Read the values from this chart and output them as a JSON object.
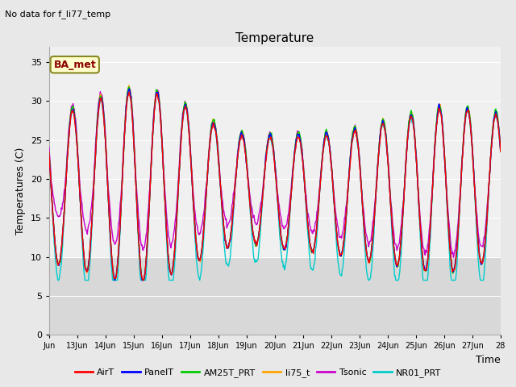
{
  "title": "Temperature",
  "xlabel": "Time",
  "ylabel": "Temperatures (C)",
  "no_data_text": "No data for f_li77_temp",
  "legend_label_text": "BA_met",
  "ylim": [
    0,
    37
  ],
  "yticks": [
    0,
    5,
    10,
    15,
    20,
    25,
    30,
    35
  ],
  "xtick_labels": [
    "Jun",
    "13Jun",
    "14Jun",
    "15Jun",
    "16Jun",
    "17Jun",
    "18Jun",
    "19Jun",
    "20Jun",
    "21Jun",
    "22Jun",
    "23Jun",
    "24Jun",
    "25Jun",
    "26Jun",
    "27Jun",
    "28"
  ],
  "series_colors": {
    "AirT": "#ff0000",
    "PanelT": "#0000ff",
    "AM25T_PRT": "#00cc00",
    "li75_t": "#ffa500",
    "Tsonic": "#cc00cc",
    "NR01_PRT": "#00cccc"
  },
  "background_color": "#e8e8e8",
  "plot_bg_upper": "#f0f0f0",
  "plot_bg_lower": "#d8d8d8",
  "grid_color": "#ffffff",
  "figsize": [
    6.4,
    4.8
  ],
  "dpi": 100
}
